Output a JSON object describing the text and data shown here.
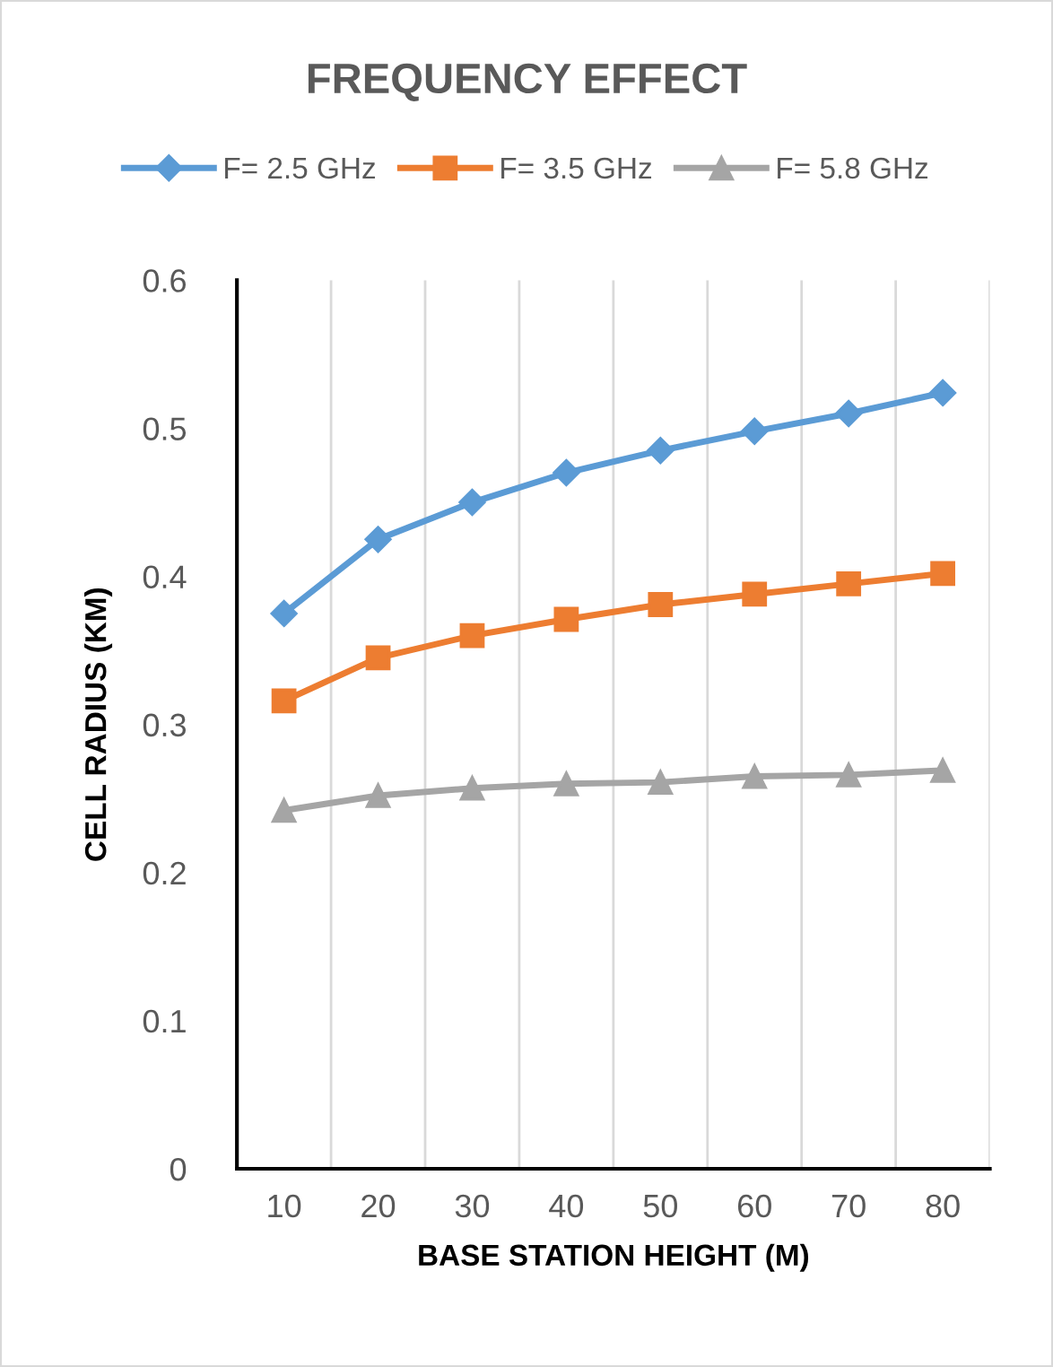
{
  "chart_data": {
    "type": "line",
    "title": "FREQUENCY EFFECT",
    "xlabel": "BASE STATION HEIGHT (M)",
    "ylabel": "CELL RADIUS (KM)",
    "categories": [
      "10",
      "20",
      "30",
      "40",
      "50",
      "60",
      "70",
      "80"
    ],
    "series": [
      {
        "name": "F= 2.5 GHz",
        "color": "#5b9bd5",
        "marker": "diamond",
        "values": [
          0.375,
          0.425,
          0.45,
          0.47,
          0.485,
          0.498,
          0.51,
          0.524
        ]
      },
      {
        "name": "F= 3.5 GHz",
        "color": "#ed7d31",
        "marker": "square",
        "values": [
          0.316,
          0.345,
          0.36,
          0.371,
          0.381,
          0.388,
          0.395,
          0.402
        ]
      },
      {
        "name": "F= 5.8 GHz",
        "color": "#a5a5a5",
        "marker": "triangle",
        "values": [
          0.242,
          0.252,
          0.257,
          0.26,
          0.261,
          0.265,
          0.266,
          0.269
        ]
      }
    ],
    "ylim": [
      0,
      0.6
    ],
    "yticks": [
      0,
      0.1,
      0.2,
      0.3,
      0.4,
      0.5,
      0.6
    ],
    "grid": "x",
    "legend": "top",
    "line_style": "solid"
  }
}
